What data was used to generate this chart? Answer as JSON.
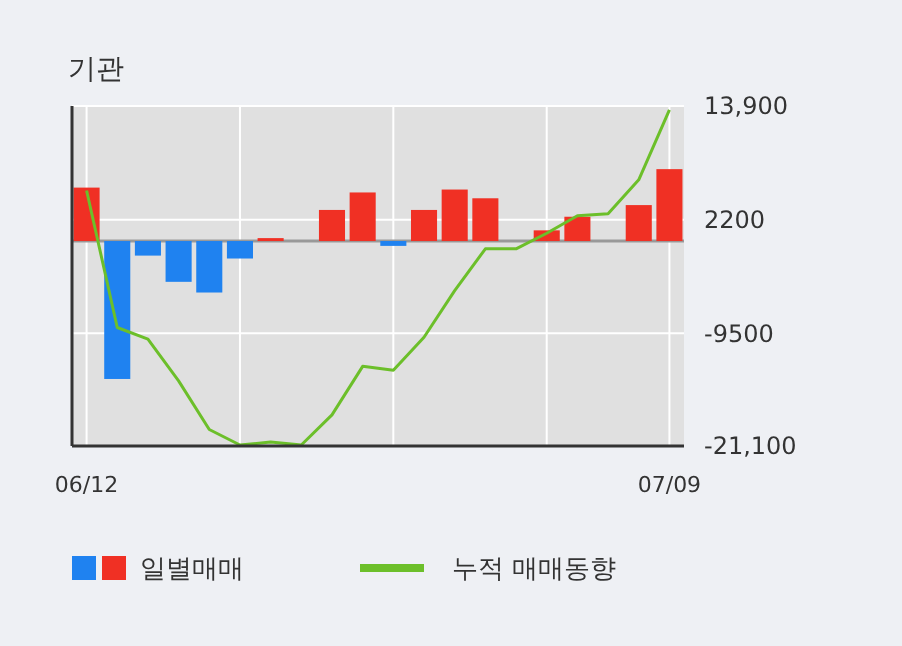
{
  "chart_data": {
    "type": "bar",
    "title": "기관",
    "categories": [
      "06/12",
      null,
      null,
      null,
      null,
      null,
      null,
      null,
      null,
      null,
      null,
      null,
      null,
      null,
      null,
      null,
      null,
      null,
      null,
      "07/09"
    ],
    "series": [
      {
        "name": "일별매매",
        "colors": [
          "#f03024",
          "#1f82f0",
          "#1f82f0",
          "#1f82f0",
          "#1f82f0",
          "#1f82f0",
          "#f03024",
          "#f03024",
          "#f03024",
          "#f03024",
          "#1f82f0",
          "#f03024",
          "#f03024",
          "#f03024",
          "#f03024",
          "#f03024",
          "#f03024",
          "#f03024",
          "#f03024",
          "#f03024"
        ],
        "values": [
          5500,
          -14200,
          -1500,
          -4200,
          -5300,
          -1800,
          300,
          0,
          3200,
          5000,
          -500,
          3200,
          5300,
          4400,
          0,
          1100,
          2500,
          0,
          3700,
          7400
        ]
      },
      {
        "name": "누적 매매동향",
        "type": "line",
        "color": "#6cbf2a",
        "values": [
          5200,
          -8900,
          -10100,
          -14400,
          -19400,
          -21000,
          -20700,
          -21000,
          -17900,
          -12900,
          -13300,
          -9900,
          -5100,
          -800,
          -800,
          800,
          2600,
          2800,
          6300,
          13500
        ]
      }
    ],
    "ylim": [
      -21100,
      13900
    ],
    "yticks": [
      {
        "value": 13900,
        "label": "13,900"
      },
      2200,
      -9500,
      {
        "value": -21100,
        "label": "-21,100"
      }
    ],
    "grid": true,
    "legend": "bottom"
  }
}
